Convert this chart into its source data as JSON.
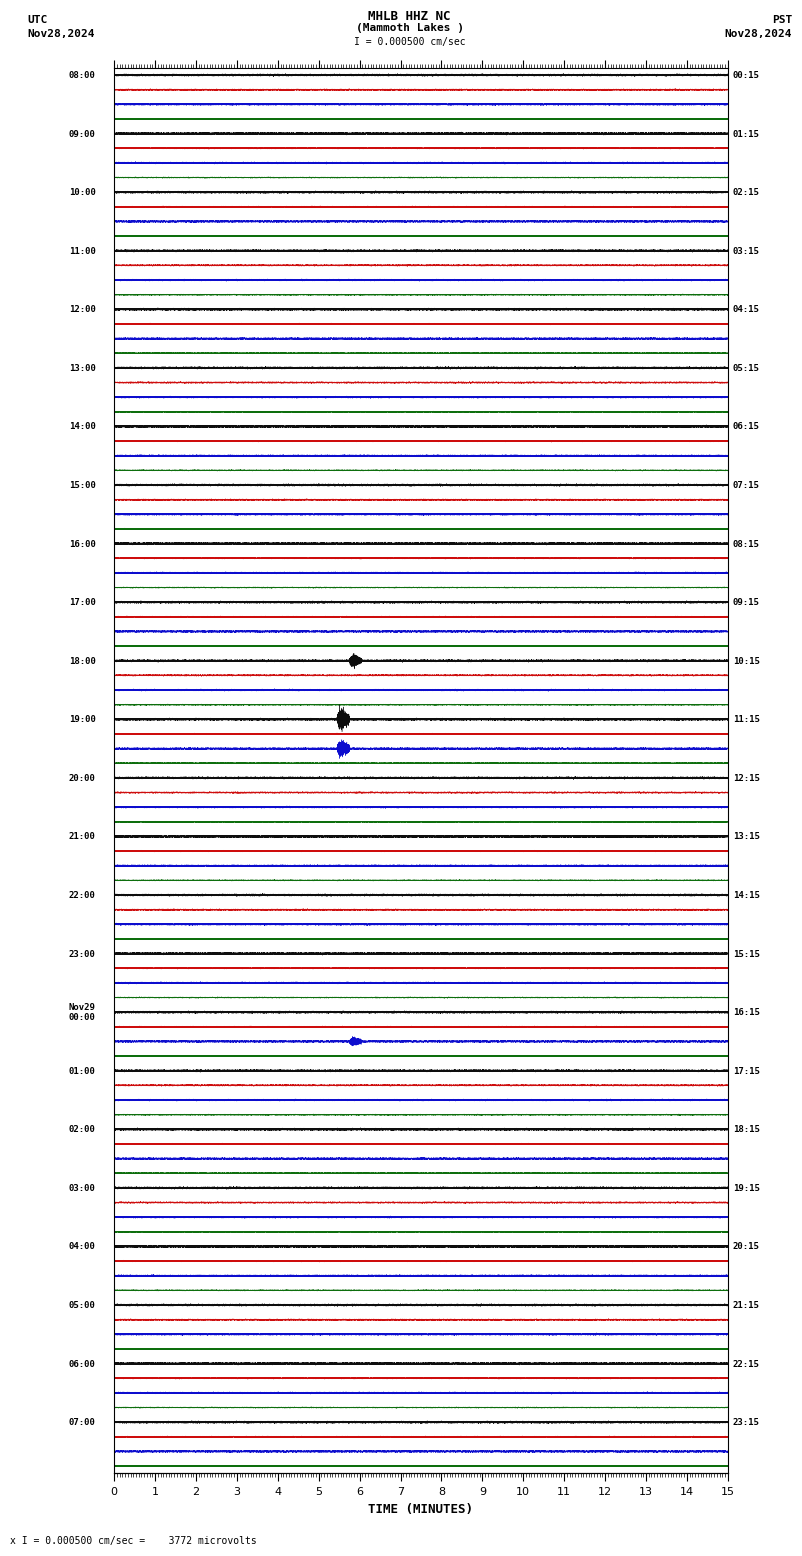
{
  "title_line1": "MHLB HHZ NC",
  "title_line2": "(Mammoth Lakes )",
  "scale_label": "I = 0.000500 cm/sec",
  "bottom_label": "x I = 0.000500 cm/sec =    3772 microvolts",
  "utc_label": "UTC",
  "utc_date": "Nov28,2024",
  "pst_label": "PST",
  "pst_date": "Nov28,2024",
  "xlabel": "TIME (MINUTES)",
  "left_times": [
    "08:00",
    "09:00",
    "10:00",
    "11:00",
    "12:00",
    "13:00",
    "14:00",
    "15:00",
    "16:00",
    "17:00",
    "18:00",
    "19:00",
    "20:00",
    "21:00",
    "22:00",
    "23:00",
    "Nov29\n00:00",
    "01:00",
    "02:00",
    "03:00",
    "04:00",
    "05:00",
    "06:00",
    "07:00"
  ],
  "right_times": [
    "00:15",
    "01:15",
    "02:15",
    "03:15",
    "04:15",
    "05:15",
    "06:15",
    "07:15",
    "08:15",
    "09:15",
    "10:15",
    "11:15",
    "12:15",
    "13:15",
    "14:15",
    "15:15",
    "16:15",
    "17:15",
    "18:15",
    "19:15",
    "20:15",
    "21:15",
    "22:15",
    "23:15"
  ],
  "num_rows": 24,
  "traces_per_row": 4,
  "trace_colors": [
    "#000000",
    "#cc0000",
    "#0000cc",
    "#006600"
  ],
  "bg_color": "#ffffff",
  "noise_amplitude": 0.08,
  "minutes": 15,
  "sample_rate": 100
}
